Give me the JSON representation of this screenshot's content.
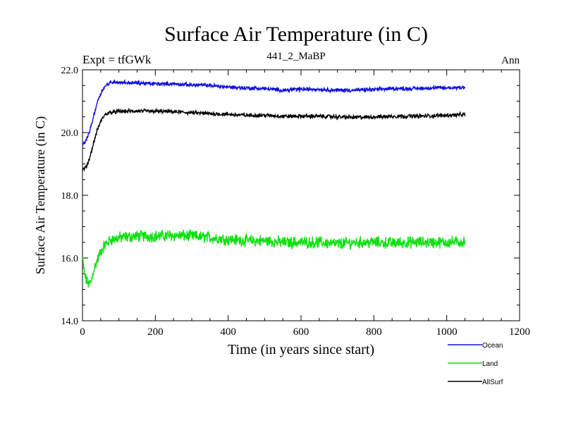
{
  "chart_data": {
    "type": "line",
    "title": "Surface Air Temperature (in C)",
    "subtitle": "441_2_MaBP",
    "experiment_label": "Expt = tfGWk",
    "period_label": "Ann",
    "xlabel": "Time (in years since start)",
    "ylabel": "Surface Air Temperature (in C)",
    "xlim": [
      0,
      1200
    ],
    "ylim": [
      14.0,
      22.0
    ],
    "x_ticks": [
      0,
      200,
      400,
      600,
      800,
      1000,
      1200
    ],
    "x_tick_labels": [
      "0",
      "200",
      "400",
      "600",
      "800",
      "1000",
      "1200"
    ],
    "y_ticks": [
      14.0,
      16.0,
      18.0,
      20.0,
      22.0
    ],
    "y_tick_labels": [
      "14.0",
      "16.0",
      "18.0",
      "20.0",
      "22.0"
    ],
    "legend_position": "bottom-right, below plot",
    "series": [
      {
        "name": "Ocean",
        "color": "#1010e0",
        "noise": 0.05,
        "x": [
          0,
          10,
          20,
          30,
          40,
          50,
          60,
          70,
          80,
          90,
          100,
          150,
          200,
          250,
          300,
          350,
          400,
          450,
          500,
          550,
          600,
          650,
          700,
          750,
          800,
          850,
          900,
          950,
          1000,
          1050
        ],
        "y": [
          19.6,
          19.75,
          20.05,
          20.5,
          20.95,
          21.25,
          21.45,
          21.55,
          21.6,
          21.62,
          21.6,
          21.58,
          21.55,
          21.55,
          21.52,
          21.5,
          21.45,
          21.42,
          21.4,
          21.35,
          21.38,
          21.38,
          21.35,
          21.35,
          21.37,
          21.4,
          21.4,
          21.42,
          21.42,
          21.45
        ]
      },
      {
        "name": "Land",
        "color": "#10e010",
        "noise": 0.15,
        "x": [
          0,
          5,
          10,
          15,
          20,
          25,
          30,
          40,
          50,
          60,
          70,
          80,
          90,
          100,
          150,
          200,
          250,
          300,
          350,
          400,
          450,
          500,
          550,
          600,
          650,
          700,
          750,
          800,
          850,
          900,
          950,
          1000,
          1050
        ],
        "y": [
          16.0,
          15.5,
          15.3,
          15.2,
          15.15,
          15.3,
          15.6,
          15.9,
          16.2,
          16.4,
          16.5,
          16.6,
          16.6,
          16.65,
          16.7,
          16.7,
          16.72,
          16.7,
          16.65,
          16.6,
          16.55,
          16.55,
          16.5,
          16.5,
          16.5,
          16.45,
          16.5,
          16.5,
          16.48,
          16.5,
          16.5,
          16.5,
          16.52
        ]
      },
      {
        "name": "AllSurf",
        "color": "#000000",
        "noise": 0.05,
        "x": [
          0,
          10,
          20,
          30,
          40,
          50,
          60,
          70,
          80,
          90,
          100,
          150,
          200,
          250,
          300,
          350,
          400,
          450,
          500,
          550,
          600,
          650,
          700,
          750,
          800,
          850,
          900,
          950,
          1000,
          1050
        ],
        "y": [
          18.8,
          18.9,
          19.2,
          19.65,
          20.05,
          20.35,
          20.55,
          20.62,
          20.65,
          20.66,
          20.67,
          20.68,
          20.68,
          20.66,
          20.63,
          20.6,
          20.58,
          20.55,
          20.55,
          20.52,
          20.52,
          20.52,
          20.5,
          20.48,
          20.5,
          20.52,
          20.52,
          20.53,
          20.55,
          20.57
        ]
      }
    ]
  }
}
